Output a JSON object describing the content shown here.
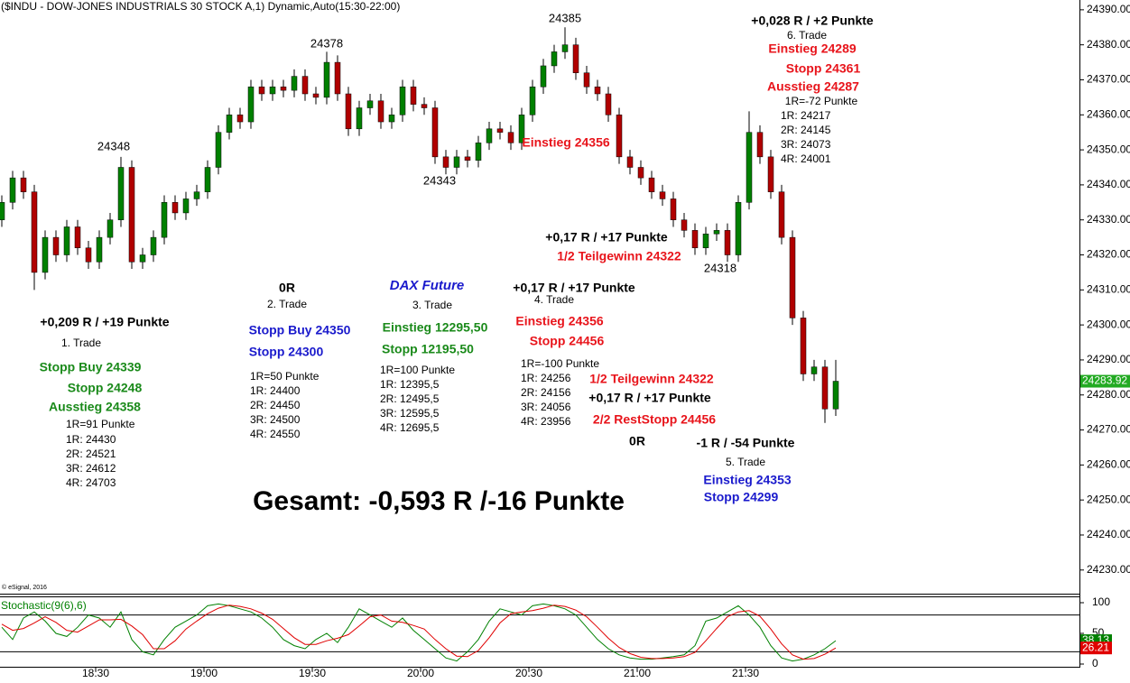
{
  "chart_data": [
    {
      "type": "candlestick",
      "title": "($INDU - DOW-JONES INDUSTRIALS 30 STOCK A,1) Dynamic,Auto(15:30-22:00)",
      "copyright": "© eSignal, 2016",
      "up_color": "#008000",
      "down_color": "#b00000",
      "wick_color": "#000000",
      "last_color": "#22aa22",
      "xlim": [
        1083.5,
        1382.25
      ],
      "ylim": [
        24223.5,
        24392.8
      ],
      "yticks": [
        {
          "value": 24390,
          "label": "24390.00"
        },
        {
          "value": 24380,
          "label": "24380.00"
        },
        {
          "value": 24370,
          "label": "24370.00"
        },
        {
          "value": 24360,
          "label": "24360.00"
        },
        {
          "value": 24350,
          "label": "24350.00"
        },
        {
          "value": 24340,
          "label": "24340.00"
        },
        {
          "value": 24330,
          "label": "24330.00"
        },
        {
          "value": 24320,
          "label": "24320.00"
        },
        {
          "value": 24310,
          "label": "24310.00"
        },
        {
          "value": 24300,
          "label": "24300.00"
        },
        {
          "value": 24290,
          "label": "24290.00"
        },
        {
          "value": 24280,
          "label": "24280.00"
        },
        {
          "value": 24270,
          "label": "24270.00"
        },
        {
          "value": 24260,
          "label": "24260.00"
        },
        {
          "value": 24250,
          "label": "24250.00"
        },
        {
          "value": 24240,
          "label": "24240.00"
        },
        {
          "value": 24230,
          "label": "24230.00"
        }
      ],
      "x": [
        1084,
        1087,
        1090,
        1093,
        1096,
        1099,
        1102,
        1105,
        1108,
        1111,
        1114,
        1117,
        1120,
        1123,
        1126,
        1129,
        1132,
        1135,
        1138,
        1141,
        1144,
        1147,
        1150,
        1153,
        1156,
        1159,
        1162,
        1165,
        1168,
        1171,
        1174,
        1177,
        1180,
        1183,
        1186,
        1189,
        1192,
        1195,
        1198,
        1201,
        1204,
        1207,
        1210,
        1213,
        1216,
        1219,
        1222,
        1225,
        1228,
        1231,
        1234,
        1237,
        1240,
        1243,
        1246,
        1249,
        1252,
        1255,
        1258,
        1261,
        1264,
        1267,
        1270,
        1273,
        1276,
        1279,
        1282,
        1285,
        1288,
        1291,
        1294,
        1297,
        1300,
        1303,
        1306,
        1309,
        1312,
        1315
      ],
      "open": [
        24330,
        24335,
        24342,
        24338,
        24315,
        24325,
        24320,
        24328,
        24322,
        24318,
        24325,
        24330,
        24345,
        24318,
        24320,
        24325,
        24335,
        24332,
        24336,
        24338,
        24345,
        24355,
        24360,
        24358,
        24368,
        24366,
        24368,
        24367,
        24371,
        24366,
        24365,
        24375,
        24366,
        24356,
        24362,
        24364,
        24358,
        24360,
        24368,
        24363,
        24362,
        24348,
        24345,
        24348,
        24347,
        24352,
        24356,
        24355,
        24352,
        24360,
        24368,
        24374,
        24378,
        24380,
        24372,
        24368,
        24366,
        24360,
        24348,
        24345,
        24342,
        24338,
        24336,
        24330,
        24327,
        24322,
        24326,
        24327,
        24320,
        24335,
        24355,
        24348,
        24338,
        24325,
        24302,
        24286,
        24288,
        24276
      ],
      "high": [
        24337,
        24344,
        24344,
        24340,
        24327,
        24327,
        24330,
        24330,
        24324,
        24327,
        24332,
        24348,
        24347,
        24322,
        24327,
        24337,
        24337,
        24338,
        24340,
        24347,
        24357,
        24362,
        24362,
        24370,
        24370,
        24370,
        24370,
        24373,
        24373,
        24368,
        24378,
        24377,
        24368,
        24364,
        24366,
        24366,
        24362,
        24370,
        24370,
        24365,
        24364,
        24350,
        24350,
        24350,
        24354,
        24358,
        24358,
        24357,
        24362,
        24370,
        24376,
        24380,
        24385,
        24382,
        24374,
        24370,
        24368,
        24362,
        24350,
        24347,
        24344,
        24340,
        24338,
        24332,
        24329,
        24328,
        24329,
        24329,
        24337,
        24361,
        24357,
        24350,
        24340,
        24327,
        24304,
        24290,
        24290,
        24290
      ],
      "low": [
        24328,
        24333,
        24336,
        24310,
        24313,
        24318,
        24318,
        24320,
        24316,
        24316,
        24323,
        24328,
        24316,
        24316,
        24318,
        24323,
        24330,
        24330,
        24334,
        24336,
        24343,
        24353,
        24356,
        24356,
        24364,
        24364,
        24365,
        24365,
        24364,
        24363,
        24363,
        24364,
        24354,
        24354,
        24360,
        24356,
        24356,
        24358,
        24361,
        24360,
        24346,
        24343,
        24343,
        24345,
        24345,
        24350,
        24353,
        24350,
        24350,
        24358,
        24366,
        24372,
        24376,
        24370,
        24366,
        24364,
        24358,
        24346,
        24343,
        24340,
        24336,
        24334,
        24328,
        24325,
        24320,
        24320,
        24324,
        24318,
        24318,
        24333,
        24346,
        24336,
        24323,
        24300,
        24284,
        24284,
        24272,
        24274
      ],
      "close": [
        24335,
        24342,
        24338,
        24315,
        24325,
        24320,
        24328,
        24322,
        24318,
        24325,
        24330,
        24345,
        24318,
        24320,
        24325,
        24335,
        24332,
        24336,
        24338,
        24345,
        24355,
        24360,
        24358,
        24368,
        24366,
        24368,
        24367,
        24371,
        24366,
        24365,
        24375,
        24366,
        24356,
        24362,
        24364,
        24358,
        24360,
        24368,
        24363,
        24362,
        24348,
        24345,
        24348,
        24347,
        24352,
        24356,
        24355,
        24352,
        24360,
        24368,
        24374,
        24378,
        24380,
        24372,
        24368,
        24366,
        24360,
        24348,
        24345,
        24342,
        24338,
        24336,
        24330,
        24327,
        24322,
        24326,
        24327,
        24320,
        24335,
        24355,
        24348,
        24338,
        24325,
        24302,
        24286,
        24288,
        24276,
        24283.92
      ],
      "annotations": [
        {
          "text": "24348",
          "color": "#000000"
        },
        {
          "text": "24378",
          "color": "#000000"
        },
        {
          "text": "24385",
          "color": "#000000"
        },
        {
          "text": "24343",
          "color": "#000000"
        },
        {
          "text": "24318",
          "color": "#000000"
        },
        {
          "text": "Einstieg 24356",
          "color": "#e8141b"
        },
        {
          "text": "+0,028 R / +2 Punkte",
          "color": "#000000"
        },
        {
          "text": "6. Trade",
          "color": "#000000"
        },
        {
          "text": "Einstieg 24289",
          "color": "#e8141b"
        },
        {
          "text": "Stopp 24361",
          "color": "#e8141b"
        },
        {
          "text": "Ausstieg 24287",
          "color": "#e8141b"
        },
        {
          "text": "1R=-72 Punkte",
          "color": "#000000"
        },
        {
          "text": "1R: 24217",
          "color": "#000000"
        },
        {
          "text": "2R: 24145",
          "color": "#000000"
        },
        {
          "text": "3R: 24073",
          "color": "#000000"
        },
        {
          "text": "4R: 24001",
          "color": "#000000"
        },
        {
          "text": "+0,17 R / +17 Punkte",
          "color": "#000000"
        },
        {
          "text": "1/2 Teilgewinn 24322",
          "color": "#e8141b"
        },
        {
          "text": "0R",
          "color": "#000000"
        },
        {
          "text": "2. Trade",
          "color": "#000000"
        },
        {
          "text": "DAX Future",
          "color": "#1a1acc"
        },
        {
          "text": "3. Trade",
          "color": "#000000"
        },
        {
          "text": "+0,17 R / +17 Punkte",
          "color": "#000000"
        },
        {
          "text": "4. Trade",
          "color": "#000000"
        },
        {
          "text": "+0,209 R / +19 Punkte",
          "color": "#000000"
        },
        {
          "text": "1. Trade",
          "color": "#000000"
        },
        {
          "text": "Stopp Buy 24350",
          "color": "#1a1acc"
        },
        {
          "text": "Stopp 24300",
          "color": "#1a1acc"
        },
        {
          "text": "1R=50 Punkte",
          "color": "#000000"
        },
        {
          "text": "1R: 24400",
          "color": "#000000"
        },
        {
          "text": "2R: 24450",
          "color": "#000000"
        },
        {
          "text": "3R: 24500",
          "color": "#000000"
        },
        {
          "text": "4R: 24550",
          "color": "#000000"
        },
        {
          "text": "Einstieg 12295,50",
          "color": "#1a8a1a"
        },
        {
          "text": "Stopp 12195,50",
          "color": "#1a8a1a"
        },
        {
          "text": "1R=100 Punkte",
          "color": "#000000"
        },
        {
          "text": "1R: 12395,5",
          "color": "#000000"
        },
        {
          "text": "2R: 12495,5",
          "color": "#000000"
        },
        {
          "text": "3R: 12595,5",
          "color": "#000000"
        },
        {
          "text": "4R: 12695,5",
          "color": "#000000"
        },
        {
          "text": "Einstieg 24356",
          "color": "#e8141b"
        },
        {
          "text": "Stopp 24456",
          "color": "#e8141b"
        },
        {
          "text": "1R=-100 Punkte",
          "color": "#000000"
        },
        {
          "text": "1R: 24256",
          "color": "#000000"
        },
        {
          "text": "2R: 24156",
          "color": "#000000"
        },
        {
          "text": "3R: 24056",
          "color": "#000000"
        },
        {
          "text": "4R: 23956",
          "color": "#000000"
        },
        {
          "text": "1/2 Teilgewinn 24322",
          "color": "#e8141b"
        },
        {
          "text": "+0,17 R / +17 Punkte",
          "color": "#000000"
        },
        {
          "text": "2/2 RestStopp 24456",
          "color": "#e8141b"
        },
        {
          "text": "0R",
          "color": "#000000"
        },
        {
          "text": "-1 R / -54 Punkte",
          "color": "#000000"
        },
        {
          "text": "5. Trade",
          "color": "#000000"
        },
        {
          "text": "Einstieg 24353",
          "color": "#1a1acc"
        },
        {
          "text": "Stopp 24299",
          "color": "#1a1acc"
        },
        {
          "text": "Stopp Buy 24339",
          "color": "#1a8a1a"
        },
        {
          "text": "Stopp 24248",
          "color": "#1a8a1a"
        },
        {
          "text": "Ausstieg 24358",
          "color": "#1a8a1a"
        },
        {
          "text": "1R=91 Punkte",
          "color": "#000000"
        },
        {
          "text": "1R: 24430",
          "color": "#000000"
        },
        {
          "text": "2R: 24521",
          "color": "#000000"
        },
        {
          "text": "3R: 24612",
          "color": "#000000"
        },
        {
          "text": "4R: 24703",
          "color": "#000000"
        },
        {
          "text": "Gesamt: -0,593 R /-16 Punkte",
          "color": "#000000"
        }
      ]
    },
    {
      "type": "line",
      "title": "Stochastic(9(6),6)",
      "title_color": "#008000",
      "xlim": [
        1083.5,
        1382.25
      ],
      "ylim": [
        0,
        100
      ],
      "yticks": [
        0,
        50,
        100
      ],
      "levels": [
        80,
        20
      ],
      "xticks": [
        {
          "value": 1110,
          "label": "18:30"
        },
        {
          "value": 1140,
          "label": "19:00"
        },
        {
          "value": 1170,
          "label": "19:30"
        },
        {
          "value": 1200,
          "label": "20:00"
        },
        {
          "value": 1230,
          "label": "20:30"
        },
        {
          "value": 1260,
          "label": "21:00"
        },
        {
          "value": 1290,
          "label": "21:30"
        }
      ],
      "x": [
        1084,
        1087,
        1090,
        1093,
        1096,
        1099,
        1102,
        1105,
        1108,
        1111,
        1114,
        1117,
        1120,
        1123,
        1126,
        1129,
        1132,
        1135,
        1138,
        1141,
        1144,
        1147,
        1150,
        1153,
        1156,
        1159,
        1162,
        1165,
        1168,
        1171,
        1174,
        1177,
        1180,
        1183,
        1186,
        1189,
        1192,
        1195,
        1198,
        1201,
        1204,
        1207,
        1210,
        1213,
        1216,
        1219,
        1222,
        1225,
        1228,
        1231,
        1234,
        1237,
        1240,
        1243,
        1246,
        1249,
        1252,
        1255,
        1258,
        1261,
        1264,
        1267,
        1270,
        1273,
        1276,
        1279,
        1282,
        1285,
        1288,
        1291,
        1294,
        1297,
        1300,
        1303,
        1306,
        1309,
        1312,
        1315
      ],
      "series": [
        {
          "color": "#008000",
          "values": [
            60,
            40,
            75,
            85,
            70,
            50,
            45,
            60,
            80,
            75,
            60,
            85,
            40,
            20,
            15,
            40,
            60,
            70,
            80,
            95,
            98,
            95,
            90,
            85,
            75,
            60,
            40,
            30,
            25,
            40,
            50,
            35,
            60,
            90,
            80,
            70,
            60,
            75,
            55,
            40,
            25,
            10,
            5,
            20,
            40,
            70,
            90,
            85,
            80,
            95,
            98,
            95,
            90,
            80,
            60,
            40,
            25,
            15,
            10,
            8,
            8,
            10,
            12,
            15,
            30,
            70,
            75,
            85,
            95,
            80,
            60,
            30,
            10,
            5,
            8,
            15,
            25,
            38.13
          ]
        },
        {
          "color": "#e00000",
          "values": [
            65,
            55,
            58,
            67,
            77,
            68,
            55,
            52,
            62,
            72,
            72,
            73,
            62,
            48,
            25,
            25,
            38,
            57,
            70,
            82,
            91,
            96,
            94,
            90,
            83,
            73,
            58,
            43,
            32,
            32,
            38,
            42,
            48,
            62,
            77,
            80,
            70,
            68,
            63,
            57,
            40,
            25,
            13,
            12,
            22,
            43,
            67,
            82,
            85,
            87,
            91,
            96,
            94,
            88,
            77,
            60,
            42,
            27,
            17,
            11,
            9,
            9,
            10,
            12,
            19,
            38,
            58,
            77,
            85,
            87,
            78,
            57,
            33,
            15,
            8,
            9,
            16,
            26.21
          ]
        }
      ]
    }
  ]
}
